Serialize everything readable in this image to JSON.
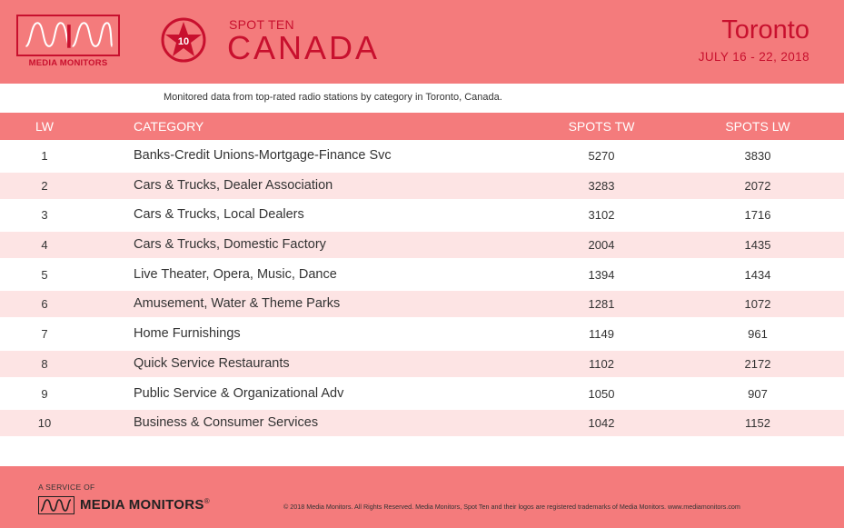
{
  "header": {
    "logo_text": "MEDIA MONITORS",
    "badge_number": "10",
    "spot_ten": "SPOT TEN",
    "country": "CANADA",
    "city": "Toronto",
    "dates": "JULY 16 - 22, 2018"
  },
  "subtitle": "Monitored data from top-rated radio stations by category in Toronto, Canada.",
  "table": {
    "columns": [
      "LW",
      "CATEGORY",
      "SPOTS TW",
      "SPOTS LW"
    ],
    "rows": [
      {
        "lw": "1",
        "category": "Banks-Credit Unions-Mortgage-Finance Svc",
        "spots_tw": "5270",
        "spots_lw": "3830"
      },
      {
        "lw": "2",
        "category": "Cars & Trucks, Dealer Association",
        "spots_tw": "3283",
        "spots_lw": "2072"
      },
      {
        "lw": "3",
        "category": "Cars & Trucks, Local Dealers",
        "spots_tw": "3102",
        "spots_lw": "1716"
      },
      {
        "lw": "4",
        "category": "Cars & Trucks, Domestic Factory",
        "spots_tw": "2004",
        "spots_lw": "1435"
      },
      {
        "lw": "5",
        "category": "Live Theater, Opera, Music, Dance",
        "spots_tw": "1394",
        "spots_lw": "1434"
      },
      {
        "lw": "6",
        "category": "Amusement, Water & Theme Parks",
        "spots_tw": "1281",
        "spots_lw": "1072"
      },
      {
        "lw": "7",
        "category": "Home Furnishings",
        "spots_tw": "1149",
        "spots_lw": "961"
      },
      {
        "lw": "8",
        "category": "Quick Service Restaurants",
        "spots_tw": "1102",
        "spots_lw": "2172"
      },
      {
        "lw": "9",
        "category": "Public Service & Organizational Adv",
        "spots_tw": "1050",
        "spots_lw": "907"
      },
      {
        "lw": "10",
        "category": "Business & Consumer Services",
        "spots_tw": "1042",
        "spots_lw": "1152"
      }
    ]
  },
  "footer": {
    "service_of": "A SERVICE OF",
    "brand": "MEDIA MONITORS",
    "brand_mark": "®",
    "copyright": "© 2018 Media Monitors.  All Rights Reserved. Media Monitors, Spot Ten and their logos are registered trademarks of Media Monitors. www.mediamonitors.com"
  },
  "colors": {
    "band": "#f47b7c",
    "accent": "#c8102e",
    "alt_row": "#fde4e4"
  },
  "icons": [
    "media-monitors-logo-icon",
    "star-badge-icon"
  ]
}
